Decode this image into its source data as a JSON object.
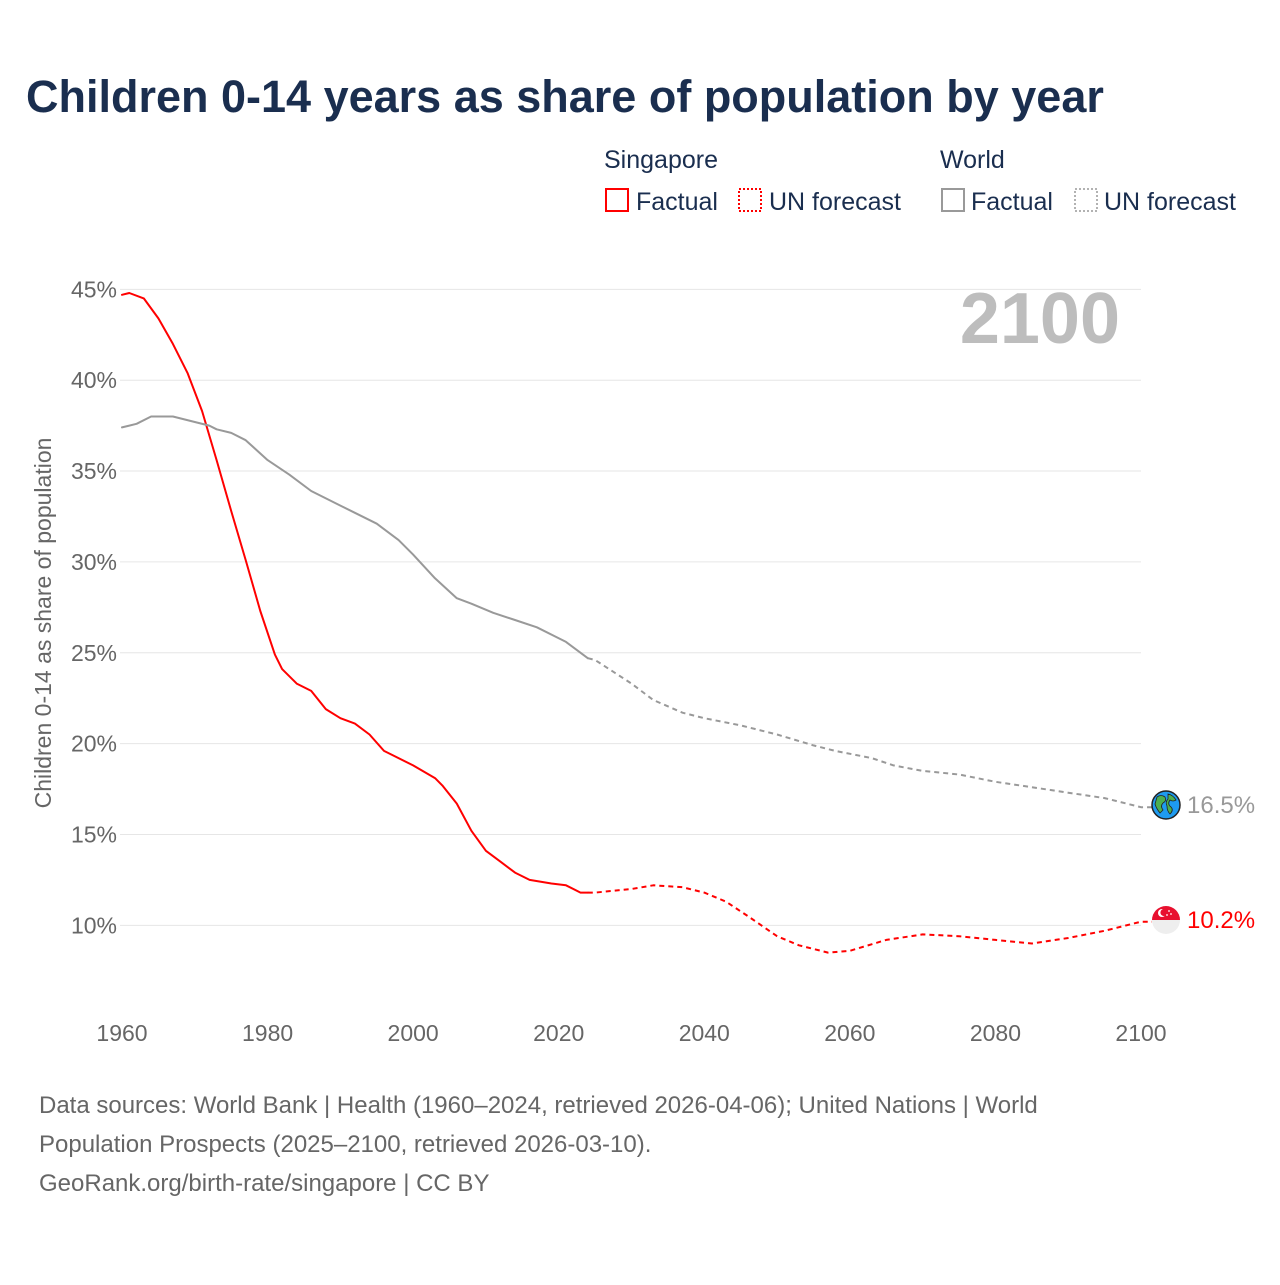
{
  "chart_data": {
    "type": "line",
    "title": "Children 0-14 years as share of population by year",
    "ylabel": "Children 0-14 as share of population",
    "xlabel": "",
    "year_display": "2100",
    "xlim": [
      1960,
      2100
    ],
    "ylim": [
      6,
      47
    ],
    "x_ticks": [
      1960,
      1980,
      2000,
      2020,
      2040,
      2060,
      2080,
      2100
    ],
    "x_tick_labels": [
      "1960",
      "1980",
      "2000",
      "2020",
      "2040",
      "2060",
      "2080",
      "2100"
    ],
    "y_ticks": [
      10,
      15,
      20,
      25,
      30,
      35,
      40,
      45
    ],
    "y_tick_labels": [
      "10%",
      "15%",
      "20%",
      "25%",
      "30%",
      "35%",
      "40%",
      "45%"
    ],
    "grid": true,
    "legend": {
      "placement": "top-right",
      "groups": [
        {
          "name": "Singapore",
          "items": [
            "Factual",
            "UN forecast"
          ],
          "color": "#ff0000"
        },
        {
          "name": "World",
          "items": [
            "Factual",
            "UN forecast"
          ],
          "color": "#999999"
        }
      ]
    },
    "series": [
      {
        "name": "Singapore",
        "color": "#ff0000",
        "end_label": "10.2%",
        "factual": {
          "x": [
            1960,
            1961,
            1963,
            1965,
            1967,
            1969,
            1971,
            1973,
            1975,
            1977,
            1979,
            1981,
            1982,
            1984,
            1986,
            1988,
            1990,
            1992,
            1994,
            1996,
            1997,
            2000,
            2003,
            2004,
            2006,
            2008,
            2010,
            2012,
            2014,
            2016,
            2019,
            2021,
            2023,
            2024
          ],
          "y": [
            44.7,
            44.8,
            44.5,
            43.4,
            42.0,
            40.4,
            38.3,
            35.6,
            32.8,
            30.1,
            27.3,
            24.9,
            24.1,
            23.3,
            22.9,
            21.9,
            21.4,
            21.1,
            20.5,
            19.6,
            19.4,
            18.8,
            18.1,
            17.7,
            16.7,
            15.2,
            14.1,
            13.5,
            12.9,
            12.5,
            12.3,
            12.2,
            11.8,
            11.8
          ]
        },
        "forecast": {
          "x": [
            2024,
            2025,
            2030,
            2033,
            2037,
            2040,
            2043,
            2046,
            2050,
            2053,
            2057,
            2060,
            2065,
            2070,
            2075,
            2080,
            2085,
            2090,
            2095,
            2100
          ],
          "y": [
            11.8,
            11.8,
            12.0,
            12.2,
            12.1,
            11.8,
            11.3,
            10.5,
            9.4,
            8.9,
            8.5,
            8.6,
            9.2,
            9.5,
            9.4,
            9.2,
            9.0,
            9.3,
            9.7,
            10.2
          ]
        }
      },
      {
        "name": "World",
        "color": "#999999",
        "end_label": "16.5%",
        "factual": {
          "x": [
            1960,
            1962,
            1964,
            1967,
            1970,
            1972,
            1973,
            1975,
            1977,
            1980,
            1983,
            1986,
            1990,
            1992,
            1995,
            1998,
            2000,
            2003,
            2006,
            2008,
            2011,
            2014,
            2017,
            2021,
            2024
          ],
          "y": [
            37.4,
            37.6,
            38.0,
            38.0,
            37.7,
            37.5,
            37.3,
            37.1,
            36.7,
            35.6,
            34.8,
            33.9,
            33.1,
            32.7,
            32.1,
            31.2,
            30.4,
            29.1,
            28.0,
            27.7,
            27.2,
            26.8,
            26.4,
            25.6,
            24.7
          ]
        },
        "forecast": {
          "x": [
            2024,
            2025,
            2030,
            2033,
            2037,
            2040,
            2045,
            2050,
            2055,
            2058,
            2063,
            2066,
            2070,
            2075,
            2080,
            2085,
            2090,
            2095,
            2100
          ],
          "y": [
            24.7,
            24.6,
            23.3,
            22.4,
            21.7,
            21.4,
            21.0,
            20.5,
            19.9,
            19.6,
            19.2,
            18.8,
            18.5,
            18.3,
            17.9,
            17.6,
            17.3,
            17.0,
            16.5
          ]
        }
      }
    ]
  },
  "footer": {
    "line1": "Data sources: World Bank | Health (1960–2024, retrieved 2026-04-06); United Nations | World",
    "line2": "Population Prospects (2025–2100, retrieved 2026-03-10).",
    "line3": "GeoRank.org/birth-rate/singapore | CC BY"
  },
  "icons": {
    "world": "globe-icon",
    "singapore": "singapore-flag-icon"
  }
}
